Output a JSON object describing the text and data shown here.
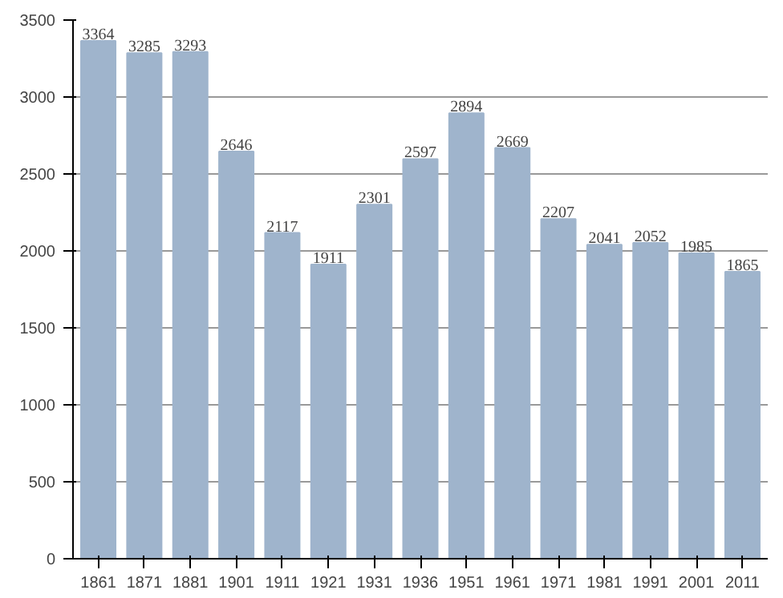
{
  "chart_data": {
    "type": "bar",
    "categories": [
      "1861",
      "1871",
      "1881",
      "1901",
      "1911",
      "1921",
      "1931",
      "1936",
      "1951",
      "1961",
      "1971",
      "1981",
      "1991",
      "2001",
      "2011"
    ],
    "values": [
      3364,
      3285,
      3293,
      2646,
      2117,
      1911,
      2301,
      2597,
      2894,
      2669,
      2207,
      2041,
      2052,
      1985,
      1865
    ],
    "color": "#9fb4cc",
    "ylim": [
      0,
      3500
    ],
    "yticks": [
      0,
      500,
      1000,
      1500,
      2000,
      2500,
      3000,
      3500
    ],
    "grid": "y",
    "data_labels": true
  }
}
